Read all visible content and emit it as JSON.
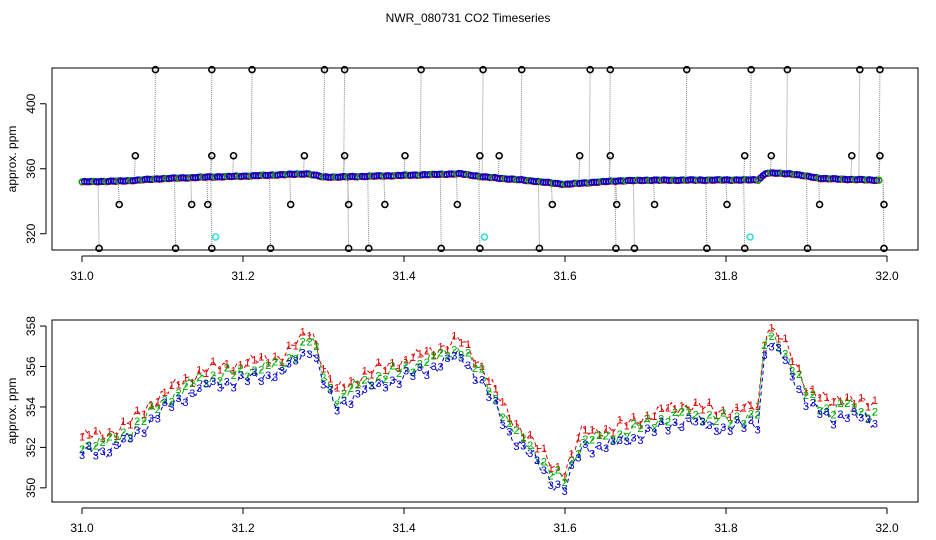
{
  "title": "NWR_080731  CO2 Timeseries",
  "colors": {
    "black": "#000000",
    "blue": "#0000cc",
    "red": "#dd0000",
    "green": "#00aa00",
    "cyan": "#33dddd",
    "grid_line": "#888888"
  },
  "chart_data": [
    {
      "type": "scatter",
      "panel": "top",
      "ylabel": "approx. ppm",
      "xlim": [
        31.0,
        32.0
      ],
      "ylim": [
        310,
        422
      ],
      "x_ticks": [
        "31.0",
        "31.2",
        "31.4",
        "31.6",
        "31.8",
        "32.0"
      ],
      "x_tick_values": [
        31.0,
        31.2,
        31.4,
        31.6,
        31.8,
        32.0
      ],
      "y_ticks": [
        "320",
        "360",
        "400"
      ],
      "y_tick_values": [
        320,
        360,
        400
      ],
      "baseline": [
        [
          31.0,
          352
        ],
        [
          31.05,
          352.5
        ],
        [
          31.1,
          354
        ],
        [
          31.16,
          355
        ],
        [
          31.2,
          355.5
        ],
        [
          31.28,
          357
        ],
        [
          31.3,
          355
        ],
        [
          31.32,
          355
        ],
        [
          31.4,
          356
        ],
        [
          31.47,
          357
        ],
        [
          31.5,
          355
        ],
        [
          31.55,
          353
        ],
        [
          31.6,
          350.5
        ],
        [
          31.66,
          352.5
        ],
        [
          31.7,
          353
        ],
        [
          31.84,
          353.2
        ],
        [
          31.85,
          357.5
        ],
        [
          31.88,
          357
        ],
        [
          31.92,
          354
        ],
        [
          31.99,
          353
        ]
      ],
      "high_spikes_x": [
        31.09,
        31.16,
        31.21,
        31.3,
        31.325,
        31.42,
        31.497,
        31.545,
        31.63,
        31.655,
        31.75,
        31.83,
        31.875,
        31.965,
        31.99
      ],
      "high_spike_y": 421,
      "low_spikes_x": [
        31.02,
        31.115,
        31.16,
        31.233,
        31.33,
        31.355,
        31.445,
        31.493,
        31.567,
        31.662,
        31.685,
        31.775,
        31.822,
        31.9,
        31.995
      ],
      "low_spike_y": 311,
      "mid_high_x": [
        31.065,
        31.16,
        31.187,
        31.275,
        31.325,
        31.4,
        31.493,
        31.517,
        31.617,
        31.655,
        31.822,
        31.855,
        31.955,
        31.99
      ],
      "mid_high_y": 368,
      "mid_low_x": [
        31.045,
        31.135,
        31.155,
        31.258,
        31.33,
        31.375,
        31.465,
        31.583,
        31.663,
        31.71,
        31.8,
        31.915,
        31.995
      ],
      "mid_low_y": 338,
      "cyan_points": [
        [
          31.166,
          318
        ],
        [
          31.5,
          318
        ],
        [
          31.83,
          318
        ]
      ]
    },
    {
      "type": "line",
      "panel": "bottom",
      "ylabel": "approx. ppm",
      "xlim": [
        31.0,
        32.0
      ],
      "ylim": [
        349.3,
        358.3
      ],
      "x_ticks": [
        "31.0",
        "31.2",
        "31.4",
        "31.6",
        "31.8",
        "32.0"
      ],
      "x_tick_values": [
        31.0,
        31.2,
        31.4,
        31.6,
        31.8,
        32.0
      ],
      "y_ticks": [
        "350",
        "352",
        "354",
        "356",
        "358"
      ],
      "y_tick_values": [
        350,
        352,
        354,
        356,
        358
      ],
      "series": [
        {
          "name": "1",
          "color": "red",
          "offset": 0.6,
          "points": [
            [
              31.0,
              352
            ],
            [
              31.03,
              352.1
            ],
            [
              31.06,
              352.7
            ],
            [
              31.1,
              354.1
            ],
            [
              31.15,
              355.3
            ],
            [
              31.2,
              355.6
            ],
            [
              31.25,
              356
            ],
            [
              31.285,
              357.3
            ],
            [
              31.3,
              355.5
            ],
            [
              31.315,
              354.2
            ],
            [
              31.35,
              355.1
            ],
            [
              31.42,
              356
            ],
            [
              31.47,
              356.8
            ],
            [
              31.5,
              355.3
            ],
            [
              31.53,
              353
            ],
            [
              31.56,
              351.8
            ],
            [
              31.585,
              350.5
            ],
            [
              31.6,
              350.3
            ],
            [
              31.62,
              352.2
            ],
            [
              31.66,
              352.4
            ],
            [
              31.7,
              353
            ],
            [
              31.75,
              353.6
            ],
            [
              31.8,
              353.2
            ],
            [
              31.84,
              353.5
            ],
            [
              31.85,
              357.6
            ],
            [
              31.87,
              356.8
            ],
            [
              31.9,
              354.5
            ],
            [
              31.93,
              353.6
            ],
            [
              31.95,
              354
            ],
            [
              31.98,
              353.5
            ]
          ]
        },
        {
          "name": "2",
          "color": "green",
          "offset": 0.15,
          "points": [
            [
              31.0,
              352
            ],
            [
              31.03,
              352.1
            ],
            [
              31.06,
              352.7
            ],
            [
              31.1,
              354.1
            ],
            [
              31.15,
              355.3
            ],
            [
              31.2,
              355.6
            ],
            [
              31.25,
              356
            ],
            [
              31.285,
              357.3
            ],
            [
              31.3,
              355.5
            ],
            [
              31.315,
              354.2
            ],
            [
              31.35,
              355.1
            ],
            [
              31.42,
              356
            ],
            [
              31.47,
              356.8
            ],
            [
              31.5,
              355.3
            ],
            [
              31.53,
              353
            ],
            [
              31.56,
              351.8
            ],
            [
              31.585,
              350.5
            ],
            [
              31.6,
              350.3
            ],
            [
              31.62,
              352.2
            ],
            [
              31.66,
              352.4
            ],
            [
              31.7,
              353
            ],
            [
              31.75,
              353.6
            ],
            [
              31.8,
              353.2
            ],
            [
              31.84,
              353.5
            ],
            [
              31.85,
              357.6
            ],
            [
              31.87,
              356.8
            ],
            [
              31.9,
              354.5
            ],
            [
              31.93,
              353.6
            ],
            [
              31.95,
              354
            ],
            [
              31.98,
              353.5
            ]
          ]
        },
        {
          "name": "3",
          "color": "blue",
          "offset": -0.3,
          "points": [
            [
              31.0,
              352
            ],
            [
              31.03,
              352.1
            ],
            [
              31.06,
              352.7
            ],
            [
              31.1,
              354.1
            ],
            [
              31.15,
              355.3
            ],
            [
              31.2,
              355.6
            ],
            [
              31.25,
              356
            ],
            [
              31.285,
              357.3
            ],
            [
              31.3,
              355.5
            ],
            [
              31.315,
              354.2
            ],
            [
              31.35,
              355.1
            ],
            [
              31.42,
              356
            ],
            [
              31.47,
              356.8
            ],
            [
              31.5,
              355.3
            ],
            [
              31.53,
              353
            ],
            [
              31.56,
              351.8
            ],
            [
              31.585,
              350.5
            ],
            [
              31.6,
              350.3
            ],
            [
              31.62,
              352.2
            ],
            [
              31.66,
              352.4
            ],
            [
              31.7,
              353
            ],
            [
              31.75,
              353.6
            ],
            [
              31.8,
              353.2
            ],
            [
              31.84,
              353.5
            ],
            [
              31.85,
              357.6
            ],
            [
              31.87,
              356.8
            ],
            [
              31.9,
              354.5
            ],
            [
              31.93,
              353.6
            ],
            [
              31.95,
              354
            ],
            [
              31.98,
              353.5
            ]
          ]
        }
      ]
    }
  ]
}
